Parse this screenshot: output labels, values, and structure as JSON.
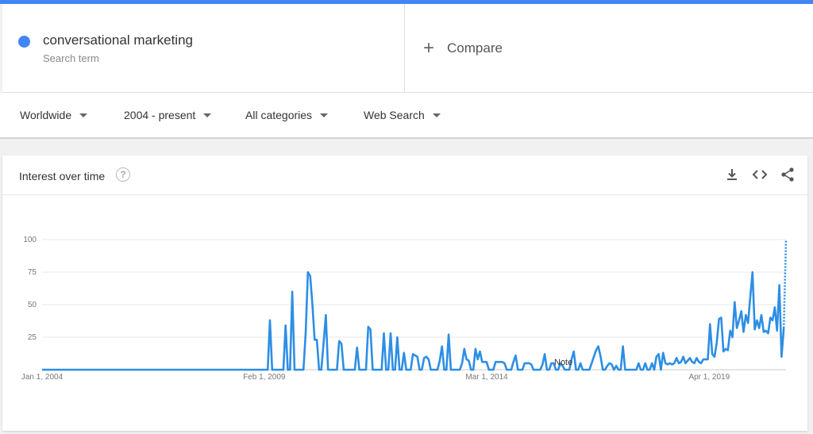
{
  "term": {
    "title": "conversational marketing",
    "subtitle": "Search term",
    "color": "#4285f4"
  },
  "compare": {
    "label": "Compare"
  },
  "filters": {
    "region": "Worldwide",
    "time": "2004 - present",
    "category": "All categories",
    "search_type": "Web Search"
  },
  "card": {
    "title": "Interest over time",
    "help_glyph": "?",
    "icons": [
      "download-icon",
      "embed-code-icon",
      "share-icon"
    ]
  },
  "chart_data": {
    "type": "line",
    "title": "",
    "ylim": [
      0,
      100
    ],
    "yticks": [
      "100",
      "75",
      "50",
      "25"
    ],
    "xticks": [
      "Jan 1, 2004",
      "Feb 1, 2009",
      "Mar 1, 2014",
      "Apr 1, 2019"
    ],
    "note_label": "Note",
    "series_color": "#2d8ee5",
    "series": [
      {
        "values": [
          0,
          0,
          0,
          0,
          0,
          0,
          0,
          0,
          0,
          0,
          0,
          0,
          0,
          0,
          0,
          0,
          0,
          0,
          0,
          0,
          0,
          0,
          0,
          0,
          0,
          0,
          0,
          0,
          0,
          0,
          0,
          0,
          0,
          0,
          0,
          0,
          0,
          0,
          0,
          0,
          0,
          0,
          0,
          0,
          0,
          0,
          0,
          0,
          0,
          0,
          0,
          0,
          0,
          0,
          0,
          0,
          0,
          0,
          0,
          0,
          0,
          0,
          0,
          0,
          0,
          0,
          0,
          0,
          0,
          0,
          0,
          0,
          0,
          0,
          0,
          0,
          0,
          0,
          0,
          0,
          0,
          0,
          0,
          0,
          0,
          0,
          0,
          0,
          0,
          0,
          0,
          0,
          0,
          0,
          0,
          0,
          0,
          0,
          0,
          0,
          0,
          0,
          38,
          0,
          0,
          0,
          0,
          0,
          0,
          34,
          0,
          0,
          60,
          0,
          0,
          0,
          0,
          0,
          28,
          75,
          72,
          50,
          23,
          23,
          0,
          0,
          20,
          42,
          0,
          0,
          0,
          0,
          0,
          22,
          20,
          0,
          0,
          0,
          0,
          0,
          0,
          17,
          0,
          0,
          0,
          0,
          33,
          31,
          0,
          0,
          0,
          0,
          0,
          28,
          0,
          0,
          28,
          0,
          0,
          25,
          0,
          0,
          13,
          0,
          0,
          0,
          12,
          11,
          10,
          0,
          0,
          9,
          10,
          8,
          0,
          0,
          0,
          0,
          7,
          18,
          0,
          0,
          27,
          0,
          0,
          0,
          0,
          0,
          5,
          16,
          8,
          7,
          0,
          0,
          16,
          8,
          14,
          6,
          6,
          6,
          0,
          0,
          0,
          6,
          6,
          6,
          6,
          5,
          0,
          0,
          0,
          6,
          11,
          0,
          0,
          0,
          5,
          5,
          5,
          4,
          0,
          0,
          0,
          0,
          4,
          12,
          0,
          0,
          5,
          5,
          0,
          0,
          5,
          3,
          0,
          0,
          0,
          8,
          14,
          0,
          0,
          5,
          0,
          0,
          0,
          0,
          5,
          10,
          15,
          18,
          10,
          0,
          0,
          3,
          5,
          4,
          0,
          3,
          0,
          0,
          18,
          0,
          0,
          0,
          0,
          0,
          0,
          5,
          0,
          0,
          5,
          0,
          0,
          5,
          0,
          10,
          12,
          0,
          13,
          5,
          4,
          5,
          4,
          5,
          9,
          5,
          6,
          10,
          5,
          7,
          9,
          6,
          5,
          9,
          6,
          5,
          8,
          8,
          8,
          35,
          12,
          10,
          21,
          39,
          40,
          14,
          16,
          15,
          30,
          25,
          52,
          32,
          38,
          45,
          29,
          42,
          36,
          56,
          75,
          31,
          38,
          32,
          42,
          29,
          30,
          28,
          40,
          38,
          48,
          30,
          65,
          10,
          32,
          100
        ]
      }
    ]
  }
}
